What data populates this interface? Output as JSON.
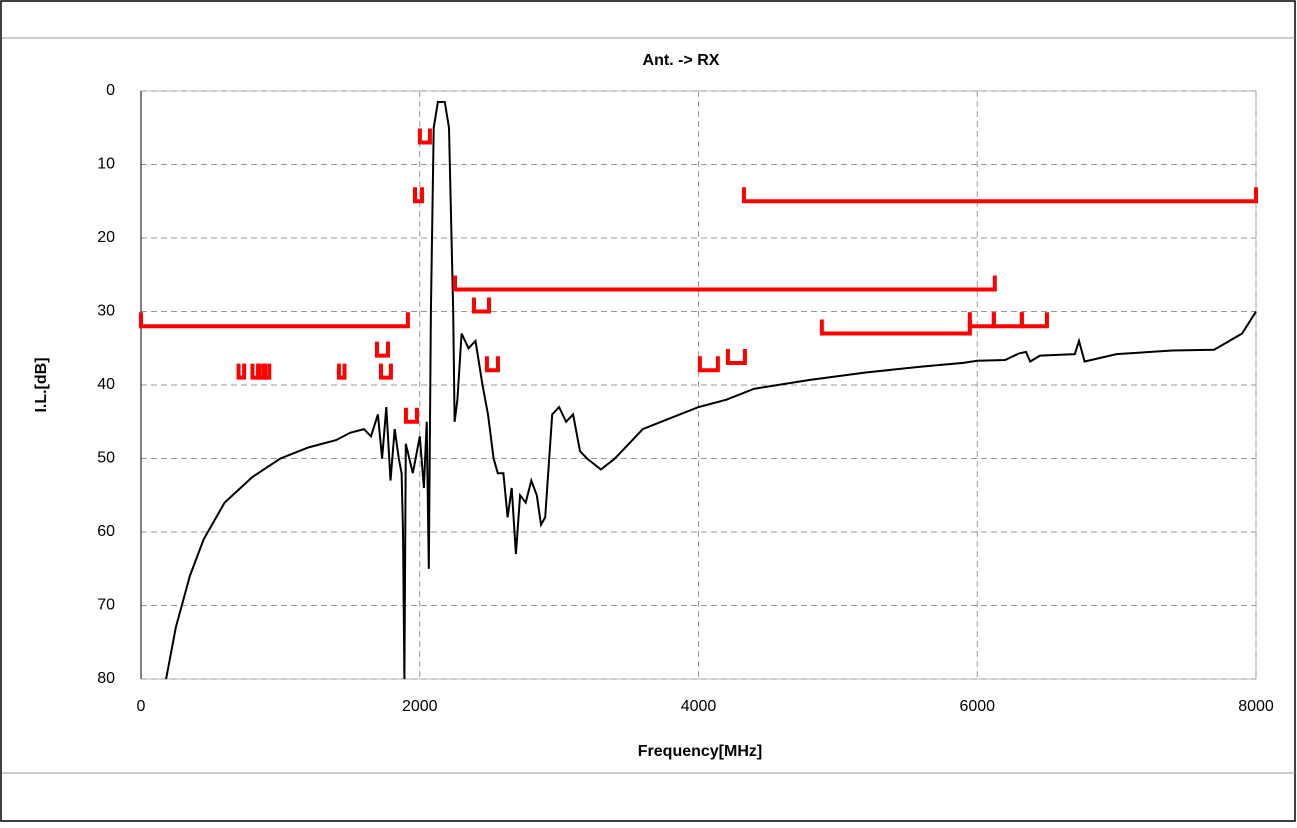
{
  "chart_data": {
    "type": "line",
    "title": "Ant. -> RX",
    "x_label": "Frequency[MHz]",
    "y_label": "I.L.[dB]",
    "xlim": [
      0,
      8000
    ],
    "xticks": [
      0,
      2000,
      4000,
      6000,
      8000
    ],
    "ylim": [
      0,
      80
    ],
    "yticks": [
      0,
      10,
      20,
      30,
      40,
      50,
      60,
      70,
      80
    ],
    "y_inverted": true,
    "grid": true,
    "series": [
      {
        "color": "#000000",
        "x": [
          180,
          250,
          350,
          450,
          600,
          800,
          1000,
          1200,
          1400,
          1500,
          1600,
          1650,
          1700,
          1730,
          1760,
          1790,
          1820,
          1850,
          1870,
          1880,
          1890,
          1900,
          1950,
          2000,
          2030,
          2050,
          2065,
          2080,
          2100,
          2130,
          2180,
          2210,
          2240,
          2250,
          2270,
          2300,
          2350,
          2400,
          2450,
          2490,
          2530,
          2560,
          2600,
          2630,
          2660,
          2690,
          2720,
          2760,
          2800,
          2840,
          2870,
          2900,
          2950,
          3000,
          3050,
          3100,
          3150,
          3200,
          3300,
          3400,
          3600,
          3800,
          4000,
          4200,
          4400,
          4800,
          5200,
          5600,
          5900,
          6000,
          6200,
          6300,
          6350,
          6380,
          6450,
          6700,
          6730,
          6770,
          7000,
          7400,
          7700,
          7900,
          8000
        ],
        "values": [
          80,
          73,
          66,
          61,
          56,
          52.5,
          50,
          48.5,
          47.5,
          46.5,
          46,
          47,
          44,
          50,
          43,
          53,
          46,
          50,
          52,
          60,
          80,
          48,
          52,
          47,
          54,
          45,
          65,
          30,
          5,
          1.5,
          1.5,
          5,
          30,
          45,
          42,
          33,
          35,
          34,
          40,
          44,
          50,
          52,
          52,
          58,
          54,
          63,
          55,
          56,
          53,
          55,
          59,
          58,
          44,
          43,
          45,
          44,
          49,
          50,
          51.5,
          50,
          46,
          44.5,
          43,
          42,
          40.5,
          39.3,
          38.3,
          37.5,
          37,
          36.7,
          36.6,
          35.7,
          35.5,
          36.8,
          36,
          35.8,
          34,
          36.8,
          35.8,
          35.3,
          35.2,
          33,
          30
        ]
      }
    ],
    "limits": {
      "color": "#ff0000",
      "segments": [
        {
          "x": [
            0,
            1915
          ],
          "value": 32
        },
        {
          "x": [
            700,
            740
          ],
          "value": 39
        },
        {
          "x": [
            800,
            840
          ],
          "value": 39
        },
        {
          "x": [
            850,
            890
          ],
          "value": 39
        },
        {
          "x": [
            880,
            920
          ],
          "value": 39
        },
        {
          "x": [
            1420,
            1460
          ],
          "value": 39
        },
        {
          "x": [
            1693,
            1772
          ],
          "value": 36
        },
        {
          "x": [
            1722,
            1793
          ],
          "value": 39
        },
        {
          "x": [
            1901,
            1980
          ],
          "value": 45
        },
        {
          "x": [
            1966,
            2016
          ],
          "value": 15
        },
        {
          "x": [
            2001,
            2073
          ],
          "value": 7
        },
        {
          "x": [
            2253,
            6126
          ],
          "value": 27
        },
        {
          "x": [
            2389,
            2497
          ],
          "value": 30
        },
        {
          "x": [
            2482,
            2561
          ],
          "value": 38
        },
        {
          "x": [
            4010,
            4139
          ],
          "value": 38
        },
        {
          "x": [
            4211,
            4333
          ],
          "value": 37
        },
        {
          "x": [
            4326,
            8000
          ],
          "value": 15
        },
        {
          "x": [
            4885,
            5947
          ],
          "value": 33
        },
        {
          "x": [
            5947,
            6119
          ],
          "value": 32
        },
        {
          "x": [
            6119,
            6320
          ],
          "value": 32
        },
        {
          "x": [
            6320,
            6500
          ],
          "value": 32
        }
      ]
    }
  }
}
